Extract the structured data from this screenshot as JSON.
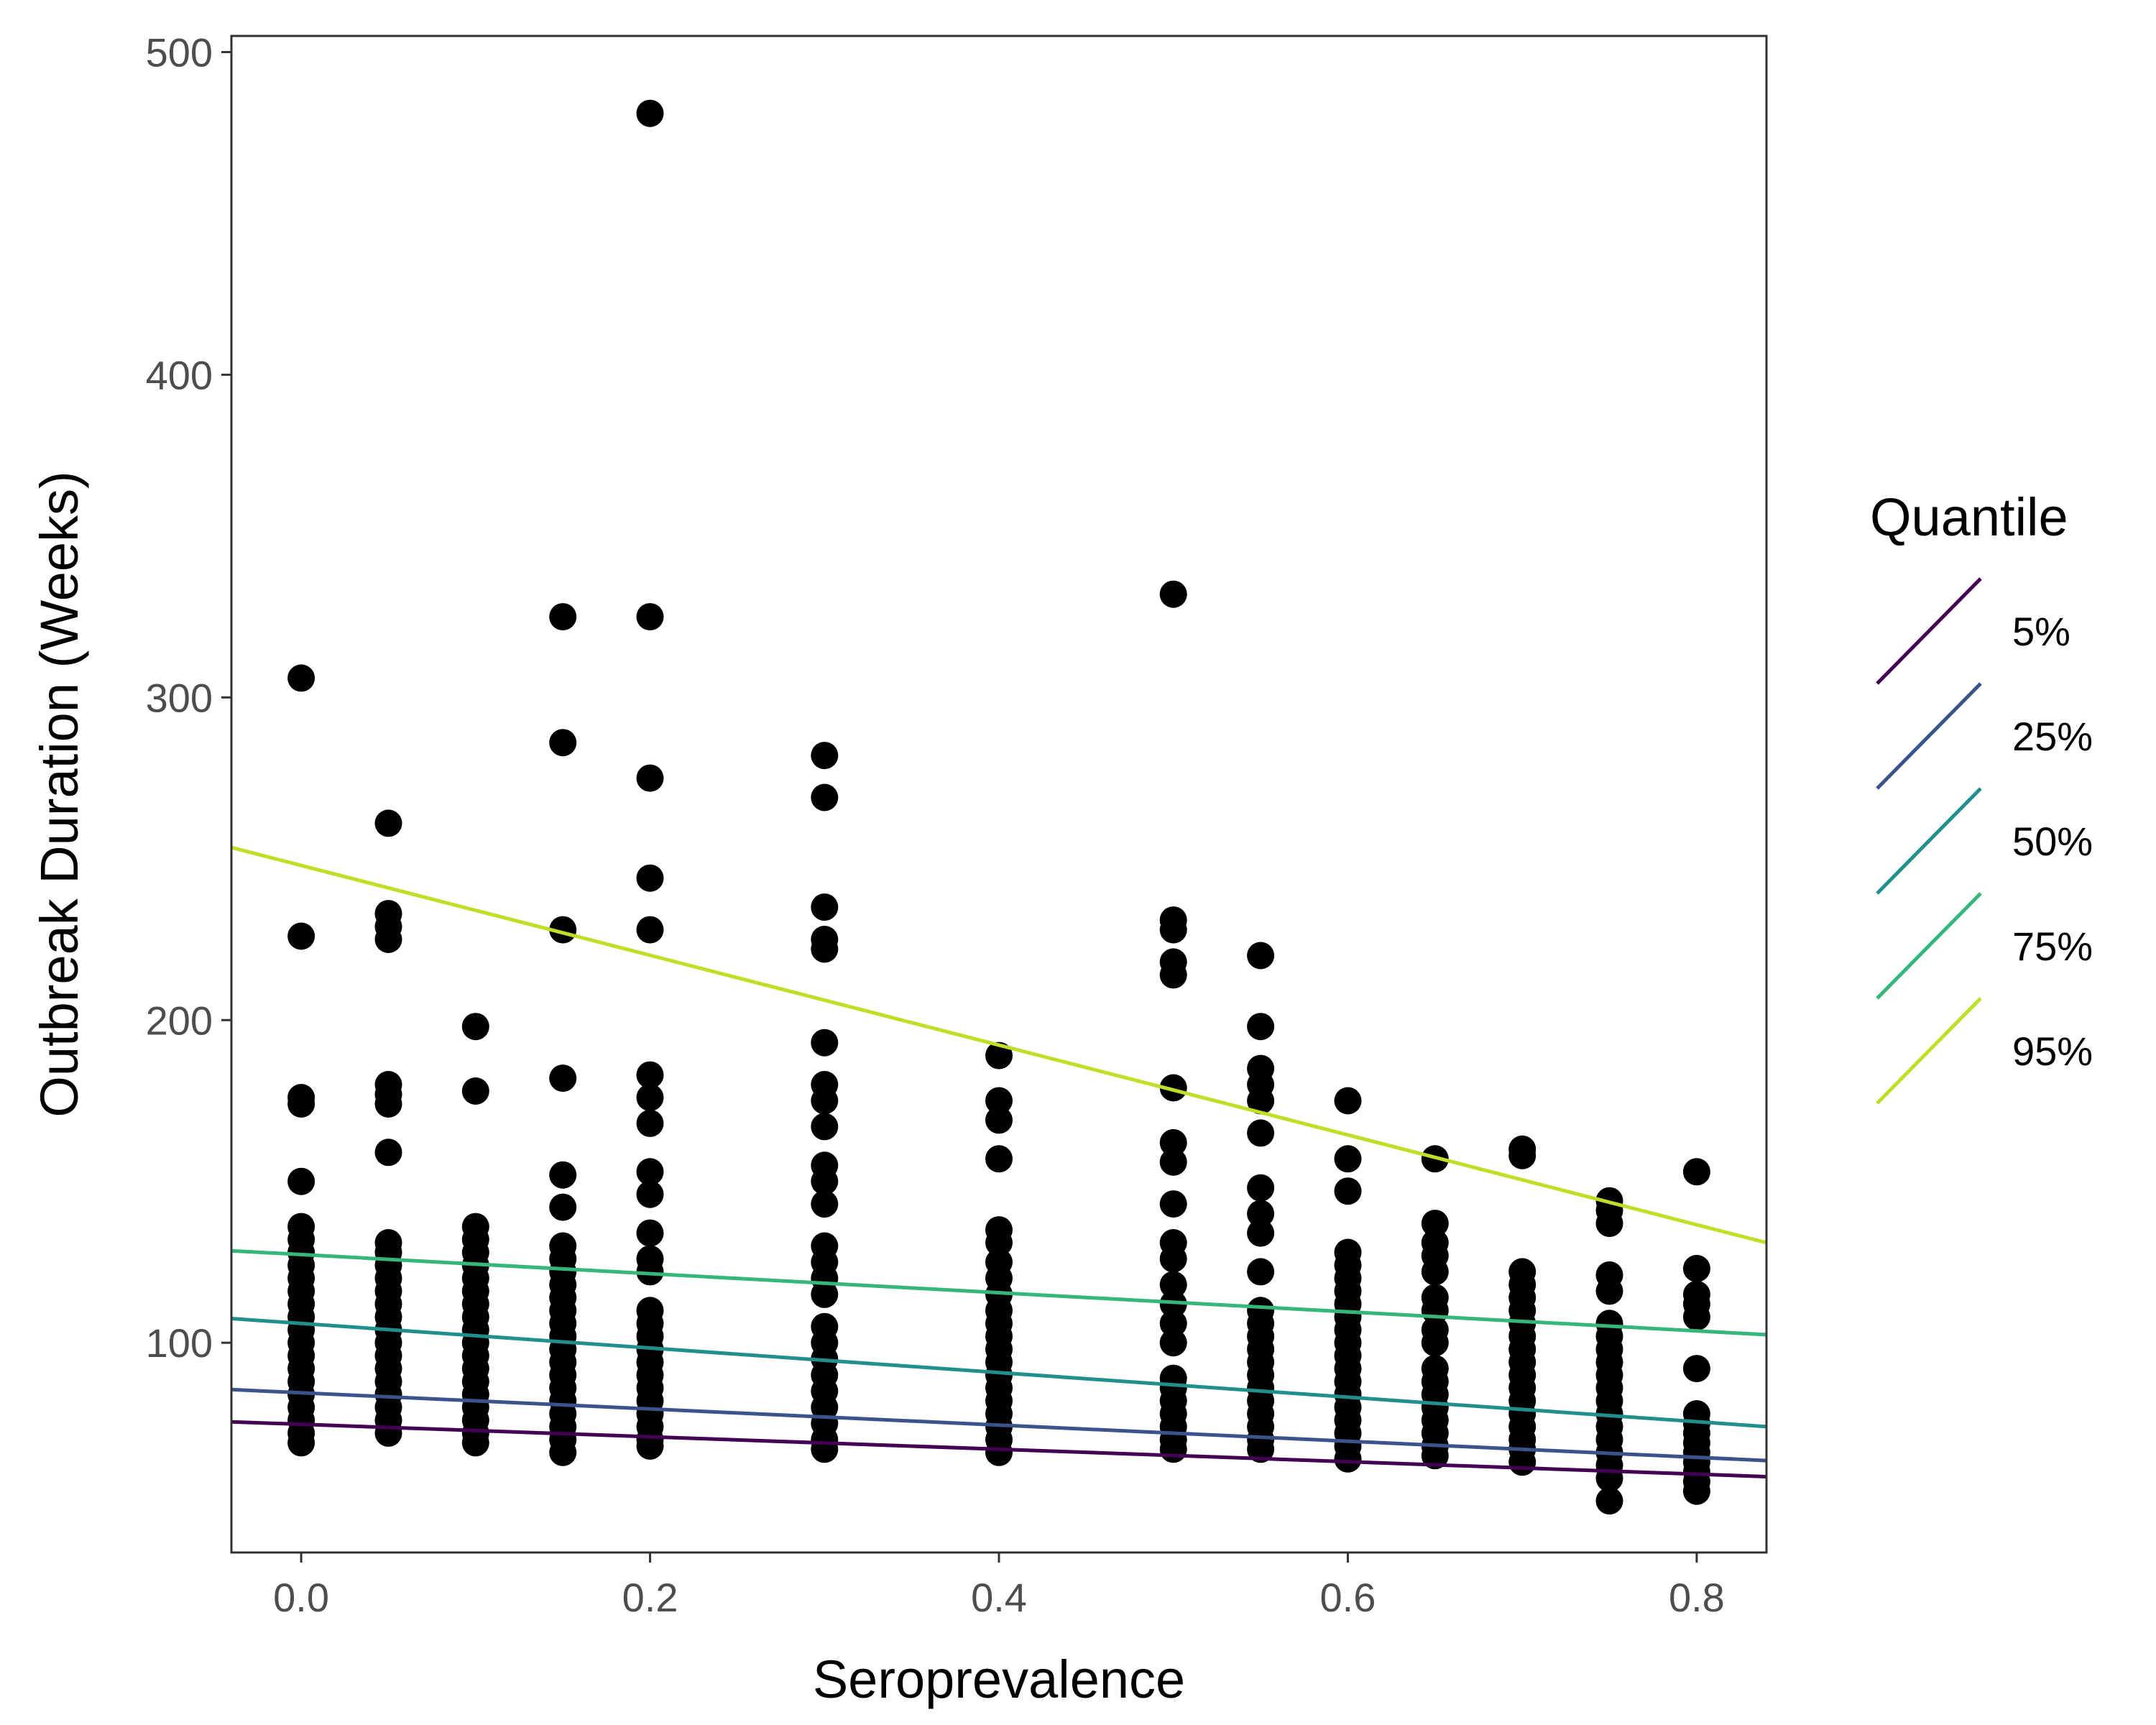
{
  "chart_data": {
    "type": "scatter",
    "title": "",
    "xlabel": "Seroprevalence",
    "ylabel": "Outbreak Duration (Weeks)",
    "xlim": [
      -0.04,
      0.84
    ],
    "ylim": [
      35,
      505
    ],
    "x_ticks": [
      0.0,
      0.2,
      0.4,
      0.6,
      0.8
    ],
    "x_tick_labels": [
      "0.0",
      "0.2",
      "0.4",
      "0.6",
      "0.8"
    ],
    "y_ticks": [
      100,
      200,
      300,
      400,
      500
    ],
    "y_tick_labels": [
      "100",
      "200",
      "300",
      "400",
      "500"
    ],
    "grid": false,
    "legend": {
      "title": "Quantile",
      "placement": "right"
    },
    "point_color": "#000000",
    "points": [
      {
        "x": 0.0,
        "y": [
          306,
          226,
          176,
          174,
          150,
          136,
          132,
          128,
          124,
          120,
          116,
          112,
          108,
          104,
          100,
          96,
          92,
          88,
          84,
          80,
          76,
          72,
          69
        ]
      },
      {
        "x": 0.05,
        "y": [
          261,
          233,
          229,
          225,
          180,
          177,
          174,
          159,
          131,
          128,
          124,
          120,
          116,
          112,
          108,
          104,
          100,
          96,
          92,
          88,
          84,
          80,
          76,
          72
        ]
      },
      {
        "x": 0.1,
        "y": [
          198,
          178,
          136,
          132,
          128,
          124,
          120,
          116,
          112,
          108,
          104,
          100,
          96,
          92,
          88,
          84,
          80,
          76,
          72,
          69
        ]
      },
      {
        "x": 0.15,
        "y": [
          325,
          286,
          228,
          182,
          152,
          142,
          130,
          126,
          122,
          118,
          114,
          110,
          106,
          102,
          98,
          94,
          90,
          86,
          82,
          78,
          74,
          70,
          66
        ]
      },
      {
        "x": 0.2,
        "y": [
          481,
          325,
          275,
          244,
          228,
          183,
          176,
          168,
          153,
          146,
          134,
          126,
          122,
          110,
          106,
          102,
          98,
          94,
          90,
          86,
          82,
          78,
          74,
          70,
          68
        ]
      },
      {
        "x": 0.3,
        "y": [
          282,
          269,
          235,
          225,
          222,
          193,
          180,
          175,
          167,
          155,
          150,
          143,
          130,
          125,
          120,
          115,
          105,
          100,
          95,
          90,
          85,
          80,
          75,
          70,
          67
        ]
      },
      {
        "x": 0.4,
        "y": [
          189,
          175,
          169,
          157,
          135,
          131,
          125,
          120,
          115,
          110,
          106,
          102,
          98,
          94,
          90,
          86,
          82,
          78,
          74,
          70,
          66
        ]
      },
      {
        "x": 0.5,
        "y": [
          332,
          231,
          228,
          218,
          214,
          179,
          162,
          156,
          143,
          131,
          126,
          118,
          112,
          106,
          100,
          89,
          86,
          82,
          78,
          74,
          70,
          67
        ]
      },
      {
        "x": 0.55,
        "y": [
          220,
          198,
          185,
          180,
          175,
          165,
          148,
          140,
          134,
          122,
          110,
          106,
          102,
          98,
          94,
          90,
          86,
          82,
          78,
          74,
          70,
          67
        ]
      },
      {
        "x": 0.6,
        "y": [
          175,
          157,
          147,
          128,
          124,
          120,
          116,
          112,
          108,
          104,
          100,
          96,
          92,
          88,
          84,
          80,
          76,
          72,
          68,
          64
        ]
      },
      {
        "x": 0.65,
        "y": [
          157,
          137,
          131,
          127,
          122,
          114,
          110,
          104,
          100,
          92,
          88,
          84,
          80,
          76,
          72,
          68,
          65
        ]
      },
      {
        "x": 0.7,
        "y": [
          160,
          158,
          122,
          118,
          114,
          110,
          106,
          102,
          98,
          94,
          90,
          86,
          82,
          78,
          74,
          70,
          67,
          63
        ]
      },
      {
        "x": 0.75,
        "y": [
          144,
          141,
          137,
          121,
          116,
          106,
          102,
          98,
          94,
          90,
          86,
          82,
          78,
          74,
          70,
          66,
          62,
          58,
          51
        ]
      },
      {
        "x": 0.8,
        "y": [
          153,
          123,
          115,
          112,
          108,
          92,
          78,
          75,
          72,
          69,
          66,
          63,
          60,
          57,
          54
        ]
      }
    ],
    "series": [
      {
        "name": "5%",
        "color": "#440154",
        "x": [
          -0.04,
          0.84
        ],
        "y": [
          75.5,
          58.5
        ]
      },
      {
        "name": "25%",
        "color": "#3B528B",
        "x": [
          -0.04,
          0.84
        ],
        "y": [
          85.5,
          63.5
        ]
      },
      {
        "name": "50%",
        "color": "#21908C",
        "x": [
          -0.04,
          0.84
        ],
        "y": [
          107.5,
          74.0
        ]
      },
      {
        "name": "75%",
        "color": "#35B779",
        "x": [
          -0.04,
          0.84
        ],
        "y": [
          128.5,
          102.5
        ]
      },
      {
        "name": "95%",
        "color": "#BDDF26",
        "x": [
          -0.04,
          0.84
        ],
        "y": [
          253.5,
          131.0
        ]
      }
    ]
  }
}
